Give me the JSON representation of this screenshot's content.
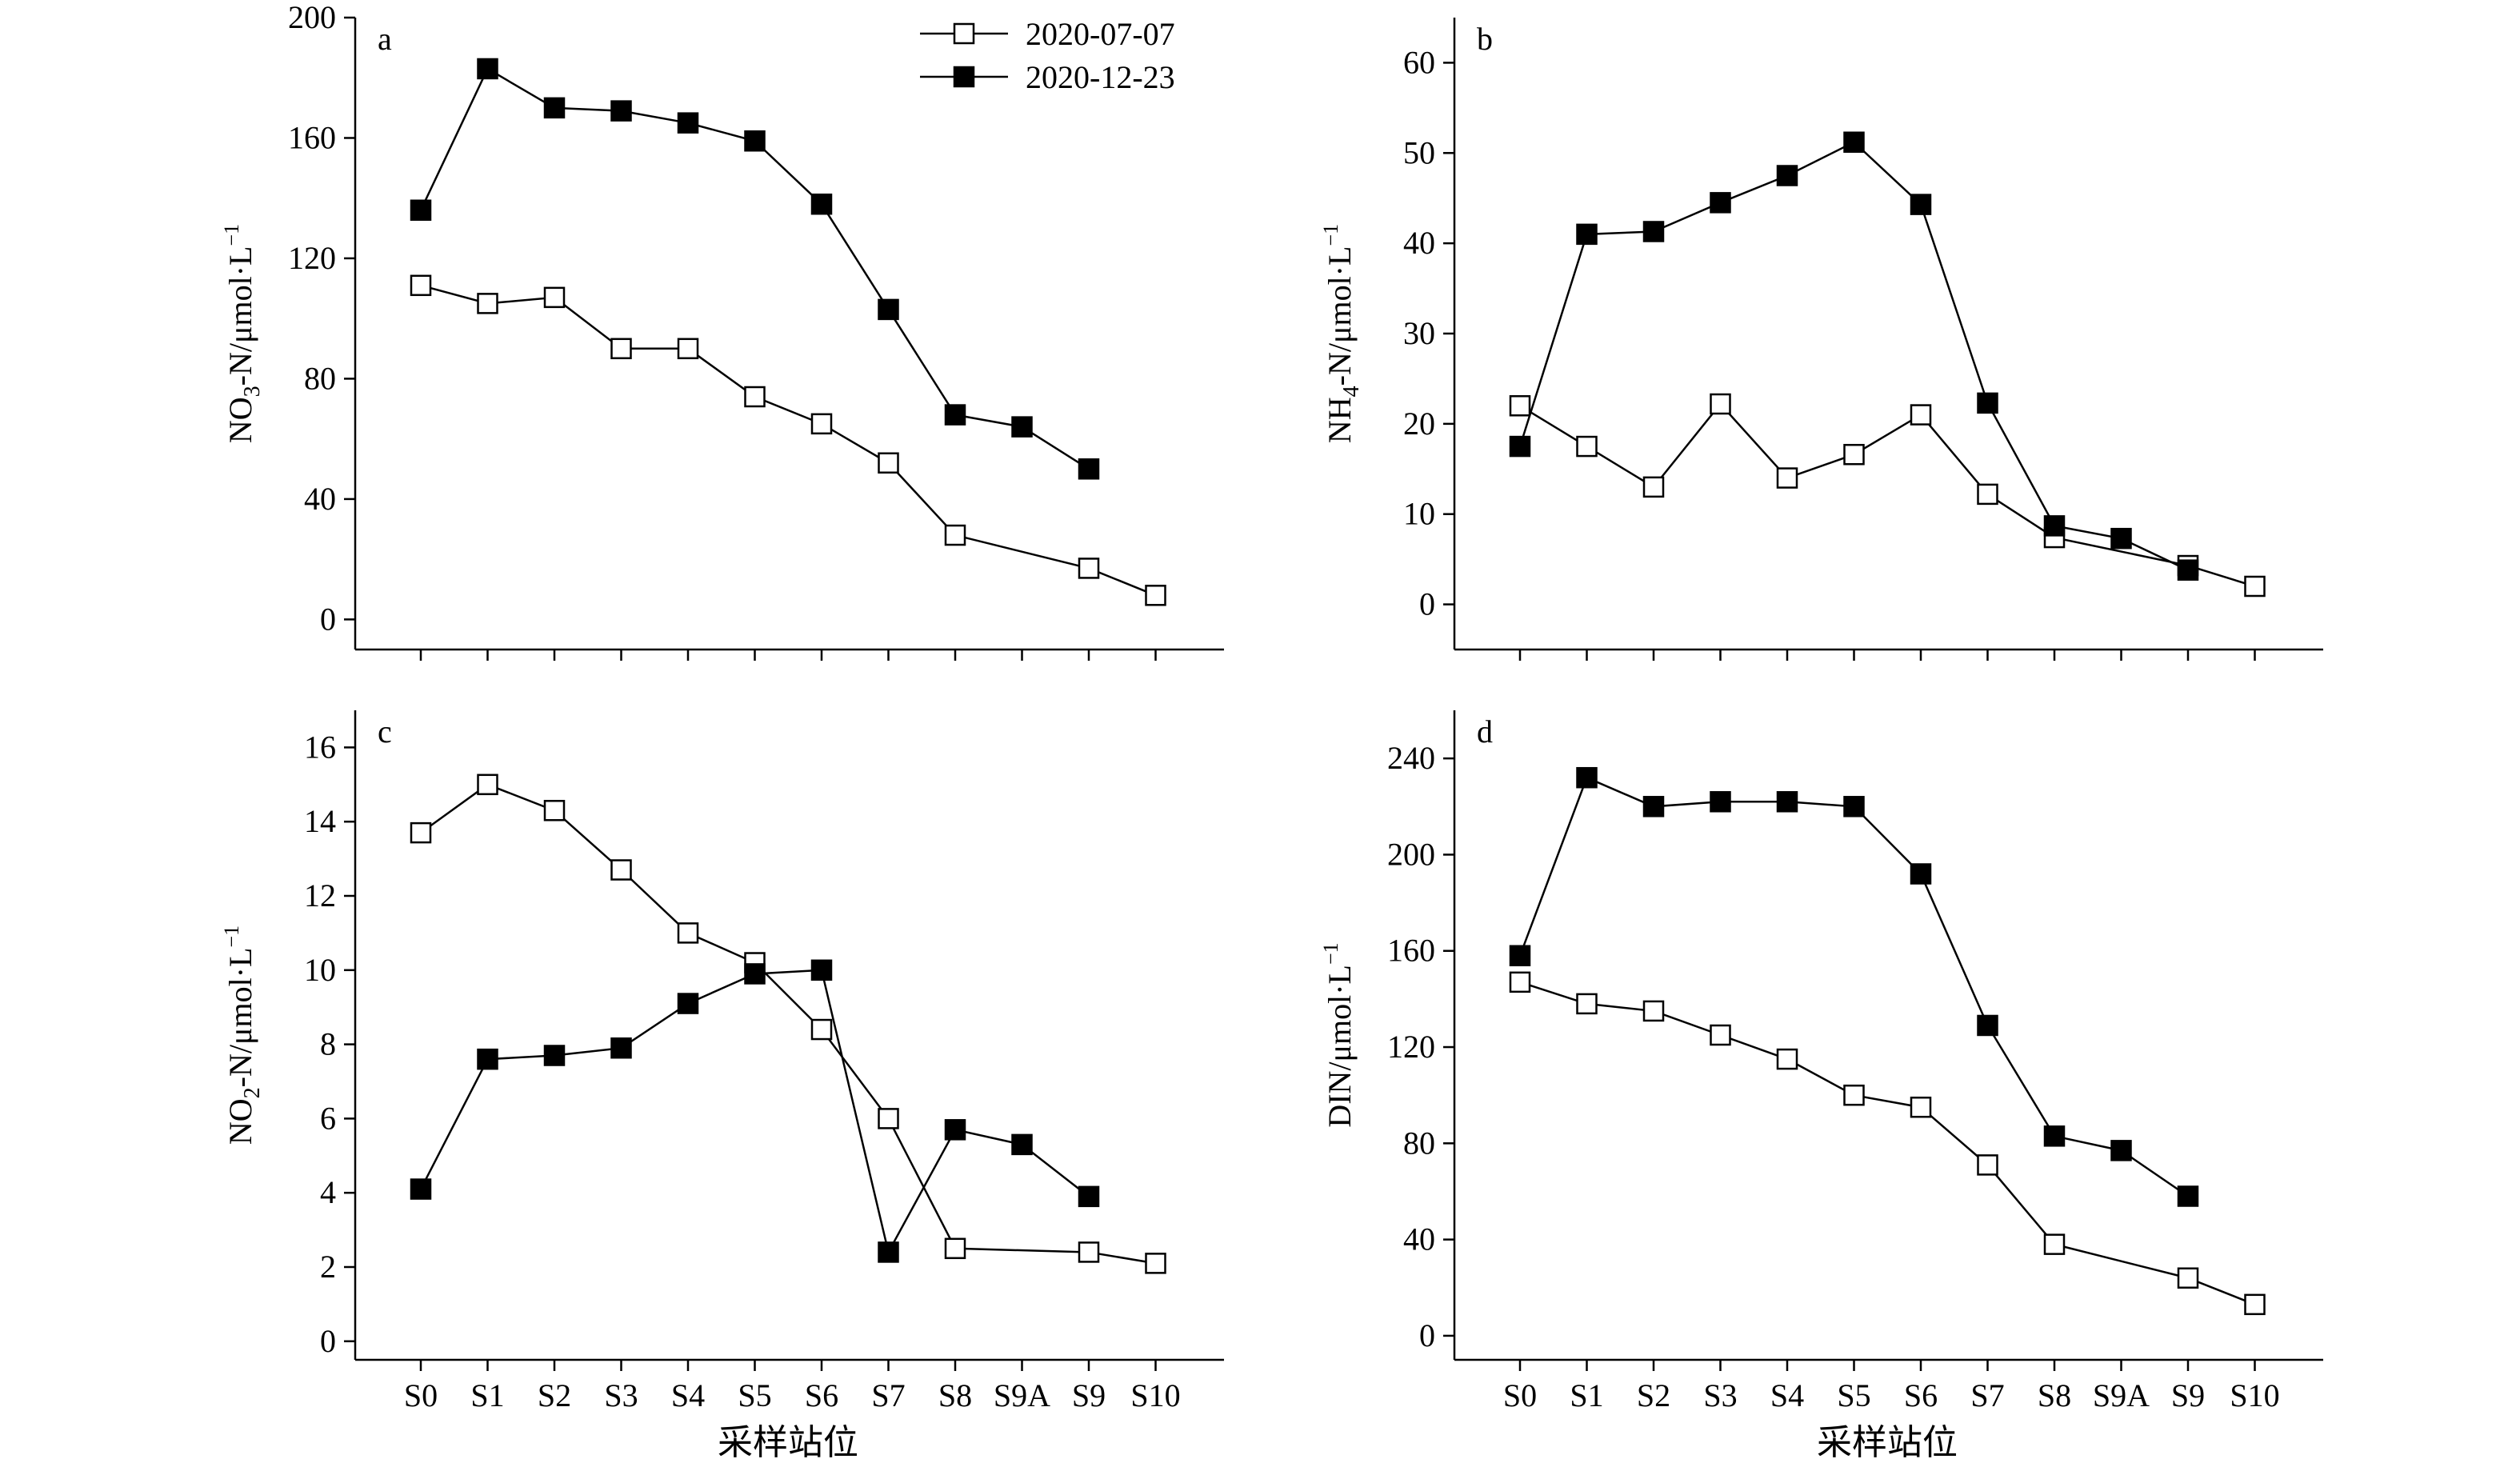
{
  "figure": {
    "x_axis_title": "采样站位",
    "legend": [
      {
        "label": "2020-07-07",
        "marker": "open-square"
      },
      {
        "label": "2020-12-23",
        "marker": "filled-square"
      }
    ]
  },
  "chart_data": [
    {
      "panel": "a",
      "type": "line",
      "ylabel_main": "NO",
      "ylabel_sub": "3",
      "ylabel_rest": "-N/μmol·L",
      "ylabel_sup": "−1",
      "xlabel": "采样站位",
      "categories": [
        "S0",
        "S1",
        "S2",
        "S3",
        "S4",
        "S5",
        "S6",
        "S7",
        "S8",
        "S9A",
        "S9",
        "S10"
      ],
      "ylim": [
        -10,
        200
      ],
      "yticks": [
        0,
        40,
        80,
        120,
        160,
        200
      ],
      "legend_position": "top-right",
      "series": [
        {
          "name": "2020-07-07",
          "marker": "open",
          "values": [
            111,
            105,
            107,
            90,
            90,
            74,
            65,
            52,
            28,
            null,
            17,
            8
          ]
        },
        {
          "name": "2020-12-23",
          "marker": "filled",
          "values": [
            136,
            183,
            170,
            169,
            165,
            159,
            138,
            103,
            68,
            64,
            50,
            null
          ]
        }
      ]
    },
    {
      "panel": "b",
      "type": "line",
      "ylabel_main": "NH",
      "ylabel_sub": "4",
      "ylabel_rest": "-N/μmol·L",
      "ylabel_sup": "−1",
      "xlabel": "采样站位",
      "categories": [
        "S0",
        "S1",
        "S2",
        "S3",
        "S4",
        "S5",
        "S6",
        "S7",
        "S8",
        "S9A",
        "S9",
        "S10"
      ],
      "ylim": [
        -5,
        65
      ],
      "yticks": [
        0,
        10,
        20,
        30,
        40,
        50,
        60
      ],
      "series": [
        {
          "name": "2020-07-07",
          "marker": "open",
          "values": [
            22,
            17.5,
            13,
            22.2,
            14,
            16.6,
            21,
            12.2,
            7.4,
            null,
            4.3,
            2
          ]
        },
        {
          "name": "2020-12-23",
          "marker": "filled",
          "values": [
            17.5,
            41,
            41.3,
            44.5,
            47.5,
            51.2,
            44.3,
            22.3,
            8.7,
            7.3,
            3.8,
            null
          ]
        }
      ]
    },
    {
      "panel": "c",
      "type": "line",
      "ylabel_main": "NO",
      "ylabel_sub": "2",
      "ylabel_rest": "-N/μmol·L",
      "ylabel_sup": "−1",
      "xlabel": "采样站位",
      "categories": [
        "S0",
        "S1",
        "S2",
        "S3",
        "S4",
        "S5",
        "S6",
        "S7",
        "S8",
        "S9A",
        "S9",
        "S10"
      ],
      "ylim": [
        -0.5,
        17
      ],
      "yticks": [
        0,
        2,
        4,
        6,
        8,
        10,
        12,
        14,
        16
      ],
      "series": [
        {
          "name": "2020-07-07",
          "marker": "open",
          "values": [
            13.7,
            15,
            14.3,
            12.7,
            11,
            10.2,
            8.4,
            6,
            2.5,
            null,
            2.4,
            2.1
          ]
        },
        {
          "name": "2020-12-23",
          "marker": "filled",
          "values": [
            4.1,
            7.6,
            7.7,
            7.9,
            9.1,
            9.9,
            10,
            2.4,
            5.7,
            5.3,
            3.9,
            null
          ]
        }
      ]
    },
    {
      "panel": "d",
      "type": "line",
      "ylabel_main": "DIN/μmol·L",
      "ylabel_sub": "",
      "ylabel_rest": "",
      "ylabel_sup": "−1",
      "xlabel": "采样站位",
      "categories": [
        "S0",
        "S1",
        "S2",
        "S3",
        "S4",
        "S5",
        "S6",
        "S7",
        "S8",
        "S9A",
        "S9",
        "S10"
      ],
      "ylim": [
        -10,
        260
      ],
      "yticks": [
        0,
        40,
        80,
        120,
        160,
        200,
        240
      ],
      "series": [
        {
          "name": "2020-07-07",
          "marker": "open",
          "values": [
            147,
            138,
            135,
            125,
            115,
            100,
            95,
            71,
            38,
            null,
            24,
            13
          ]
        },
        {
          "name": "2020-12-23",
          "marker": "filled",
          "values": [
            158,
            232,
            220,
            222,
            222,
            220,
            192,
            129,
            83,
            77,
            58,
            null
          ]
        }
      ]
    }
  ]
}
